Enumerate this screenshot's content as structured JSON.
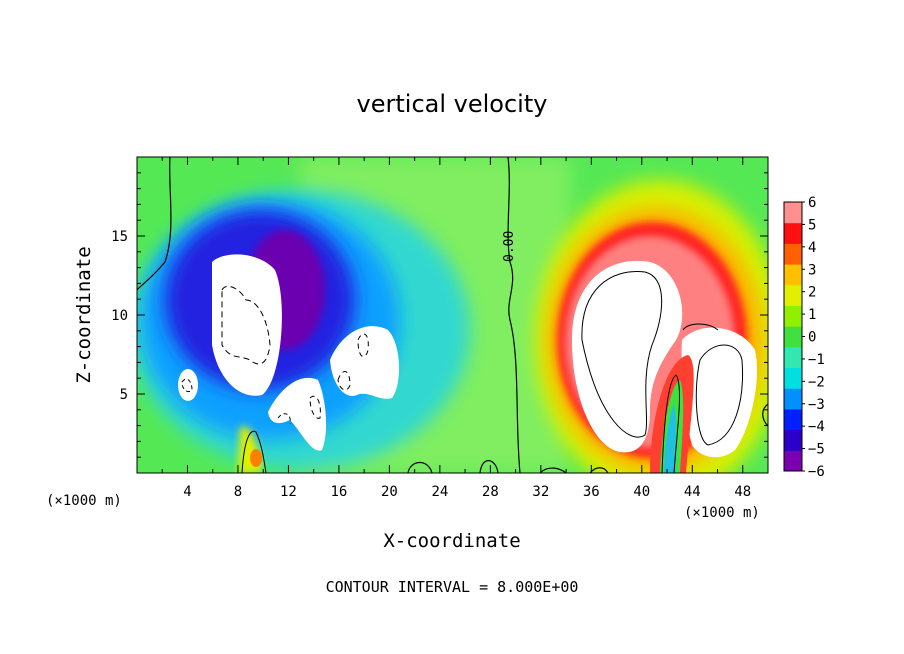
{
  "chart_data": {
    "type": "heatmap",
    "title": "vertical velocity",
    "xlabel": "X-coordinate",
    "ylabel": "Z-coordinate",
    "x_unit_label": "(×1000 m)",
    "x_unit_label_right": "(×1000 m)",
    "footer": "CONTOUR INTERVAL = 8.000E+00",
    "x_ticks": [
      "4",
      "8",
      "12",
      "16",
      "20",
      "24",
      "28",
      "32",
      "36",
      "40",
      "44",
      "48"
    ],
    "y_ticks": [
      "5",
      "10",
      "15"
    ],
    "xlim": [
      0,
      50
    ],
    "ylim": [
      0,
      20
    ],
    "contour_label": "0.00",
    "colorbar": {
      "levels": [
        "6",
        "5",
        "4",
        "3",
        "2",
        "1",
        "0",
        "−1",
        "−2",
        "−3",
        "−4",
        "−5",
        "−6"
      ],
      "range": [
        -6,
        6
      ],
      "colors": [
        "#7a00b0",
        "#2b00c8",
        "#0020ff",
        "#0090ff",
        "#00e0e0",
        "#30e8b0",
        "#40e040",
        "#90f000",
        "#e0f000",
        "#ffc000",
        "#ff6000",
        "#ff1010",
        "#ff9090"
      ]
    },
    "field_description_features": [
      {
        "kind": "updraft",
        "x_center": 42,
        "z_center": 9,
        "peak": "> 6"
      },
      {
        "kind": "downdraft",
        "x_center": 11,
        "z_center": 9,
        "peak": "< -6"
      }
    ]
  }
}
